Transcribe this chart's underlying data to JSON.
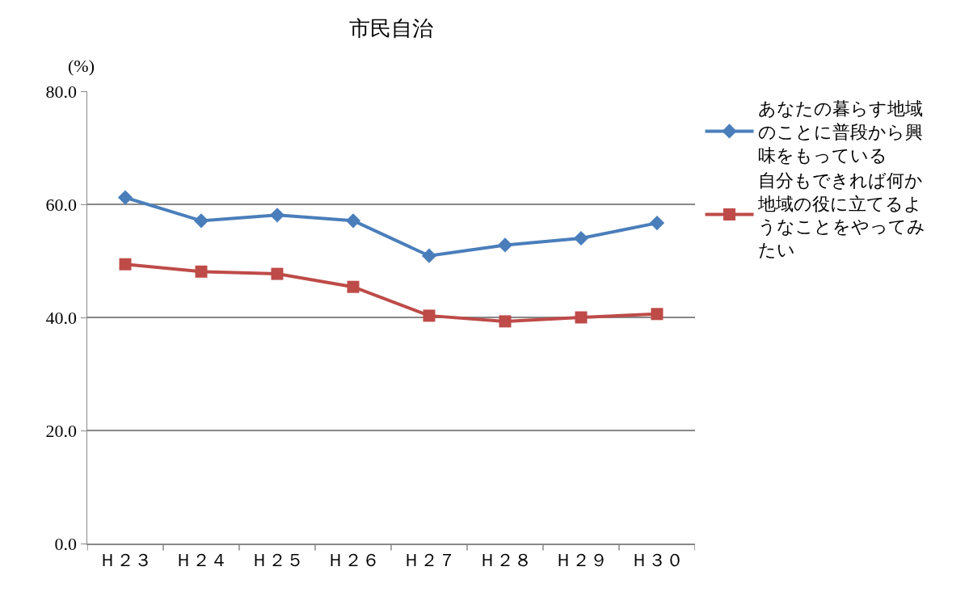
{
  "chart_data": {
    "type": "line",
    "title": "市民自治",
    "ylabel": "(%)",
    "categories": [
      "Ｈ２３",
      "Ｈ２４",
      "Ｈ２５",
      "Ｈ２６",
      "Ｈ２７",
      "Ｈ２８",
      "Ｈ２９",
      "Ｈ３０"
    ],
    "series": [
      {
        "name": "あなたの暮らす地域のことに普段から興味をもっている",
        "color": "#4a7ebb",
        "marker": "diamond",
        "values": [
          61.2,
          57.1,
          58.1,
          57.1,
          50.9,
          52.8,
          54.0,
          56.7
        ]
      },
      {
        "name": "自分もできれば何か地域の役に立てるようなことをやってみたい",
        "color": "#be4b48",
        "marker": "square",
        "values": [
          49.4,
          48.1,
          47.7,
          45.4,
          40.3,
          39.3,
          40.0,
          40.6
        ]
      }
    ],
    "ylim": [
      0,
      80
    ],
    "yticks": [
      {
        "value": 0,
        "label": "0.0"
      },
      {
        "value": 20,
        "label": "20.0"
      },
      {
        "value": 40,
        "label": "40.0"
      },
      {
        "value": 60,
        "label": "60.0"
      },
      {
        "value": 80,
        "label": "80.0"
      }
    ],
    "grid": "y",
    "legend": "right",
    "line_style": "solid"
  }
}
